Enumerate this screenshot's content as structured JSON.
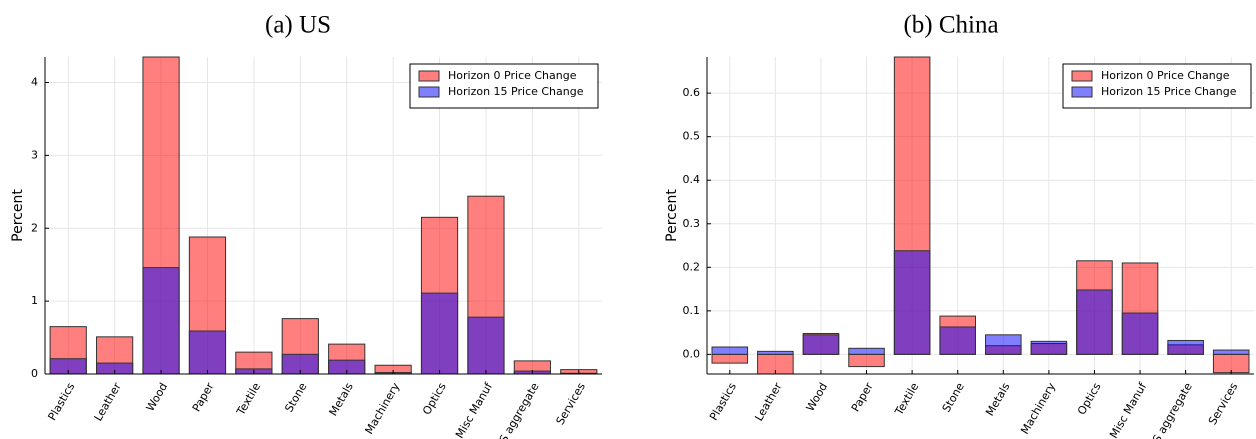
{
  "chart_data": [
    {
      "type": "bar",
      "title": "(a) US",
      "ylabel": "Percent",
      "categories": [
        "Plastics",
        "Leather",
        "Wood",
        "Paper",
        "Textile",
        "Stone",
        "Metals",
        "Machinery",
        "Optics",
        "Misc Manuf",
        "S aggregate",
        "Services"
      ],
      "series": [
        {
          "name": "Horizon 0 Price Change",
          "color": "#ff8080",
          "values": [
            0.65,
            0.51,
            4.35,
            1.88,
            0.3,
            0.76,
            0.41,
            0.12,
            2.15,
            2.44,
            0.18,
            0.06
          ]
        },
        {
          "name": "Horizon 15 Price Change",
          "color": "#7f3fbf",
          "values": [
            0.21,
            0.15,
            1.46,
            0.59,
            0.07,
            0.27,
            0.19,
            0.02,
            1.11,
            0.78,
            0.04,
            0.01
          ]
        }
      ],
      "yticks": [
        0,
        1,
        2,
        3,
        4
      ],
      "ylim": [
        0,
        4.35
      ],
      "grid": true,
      "legend": "top-right"
    },
    {
      "type": "bar",
      "title": "(b) China",
      "ylabel": "Percent",
      "categories": [
        "Plastics",
        "Leather",
        "Wood",
        "Paper",
        "Textile",
        "Stone",
        "Metals",
        "Machinery",
        "Optics",
        "Misc Manuf",
        "S aggregate",
        "Services"
      ],
      "series": [
        {
          "name": "Horizon 0 Price Change",
          "color": "#ff8080",
          "values": [
            -0.02,
            -0.045,
            0.048,
            -0.028,
            0.683,
            0.088,
            0.02,
            0.025,
            0.215,
            0.21,
            0.022,
            -0.042
          ]
        },
        {
          "name": "Horizon 15 Price Change",
          "color": "#7f3fbf",
          "values": [
            0.017,
            0.007,
            0.045,
            0.014,
            0.238,
            0.063,
            0.045,
            0.03,
            0.148,
            0.095,
            0.032,
            0.01
          ]
        }
      ],
      "yticks": [
        0.0,
        0.1,
        0.2,
        0.3,
        0.4,
        0.5,
        0.6
      ],
      "ylim": [
        -0.045,
        0.683
      ],
      "grid": true,
      "legend": "top-right"
    }
  ],
  "legend_colors": {
    "h0_fill": "#ff8080",
    "h15_fill": "#8080ff",
    "overlap_fill": "#7f3fbf"
  }
}
